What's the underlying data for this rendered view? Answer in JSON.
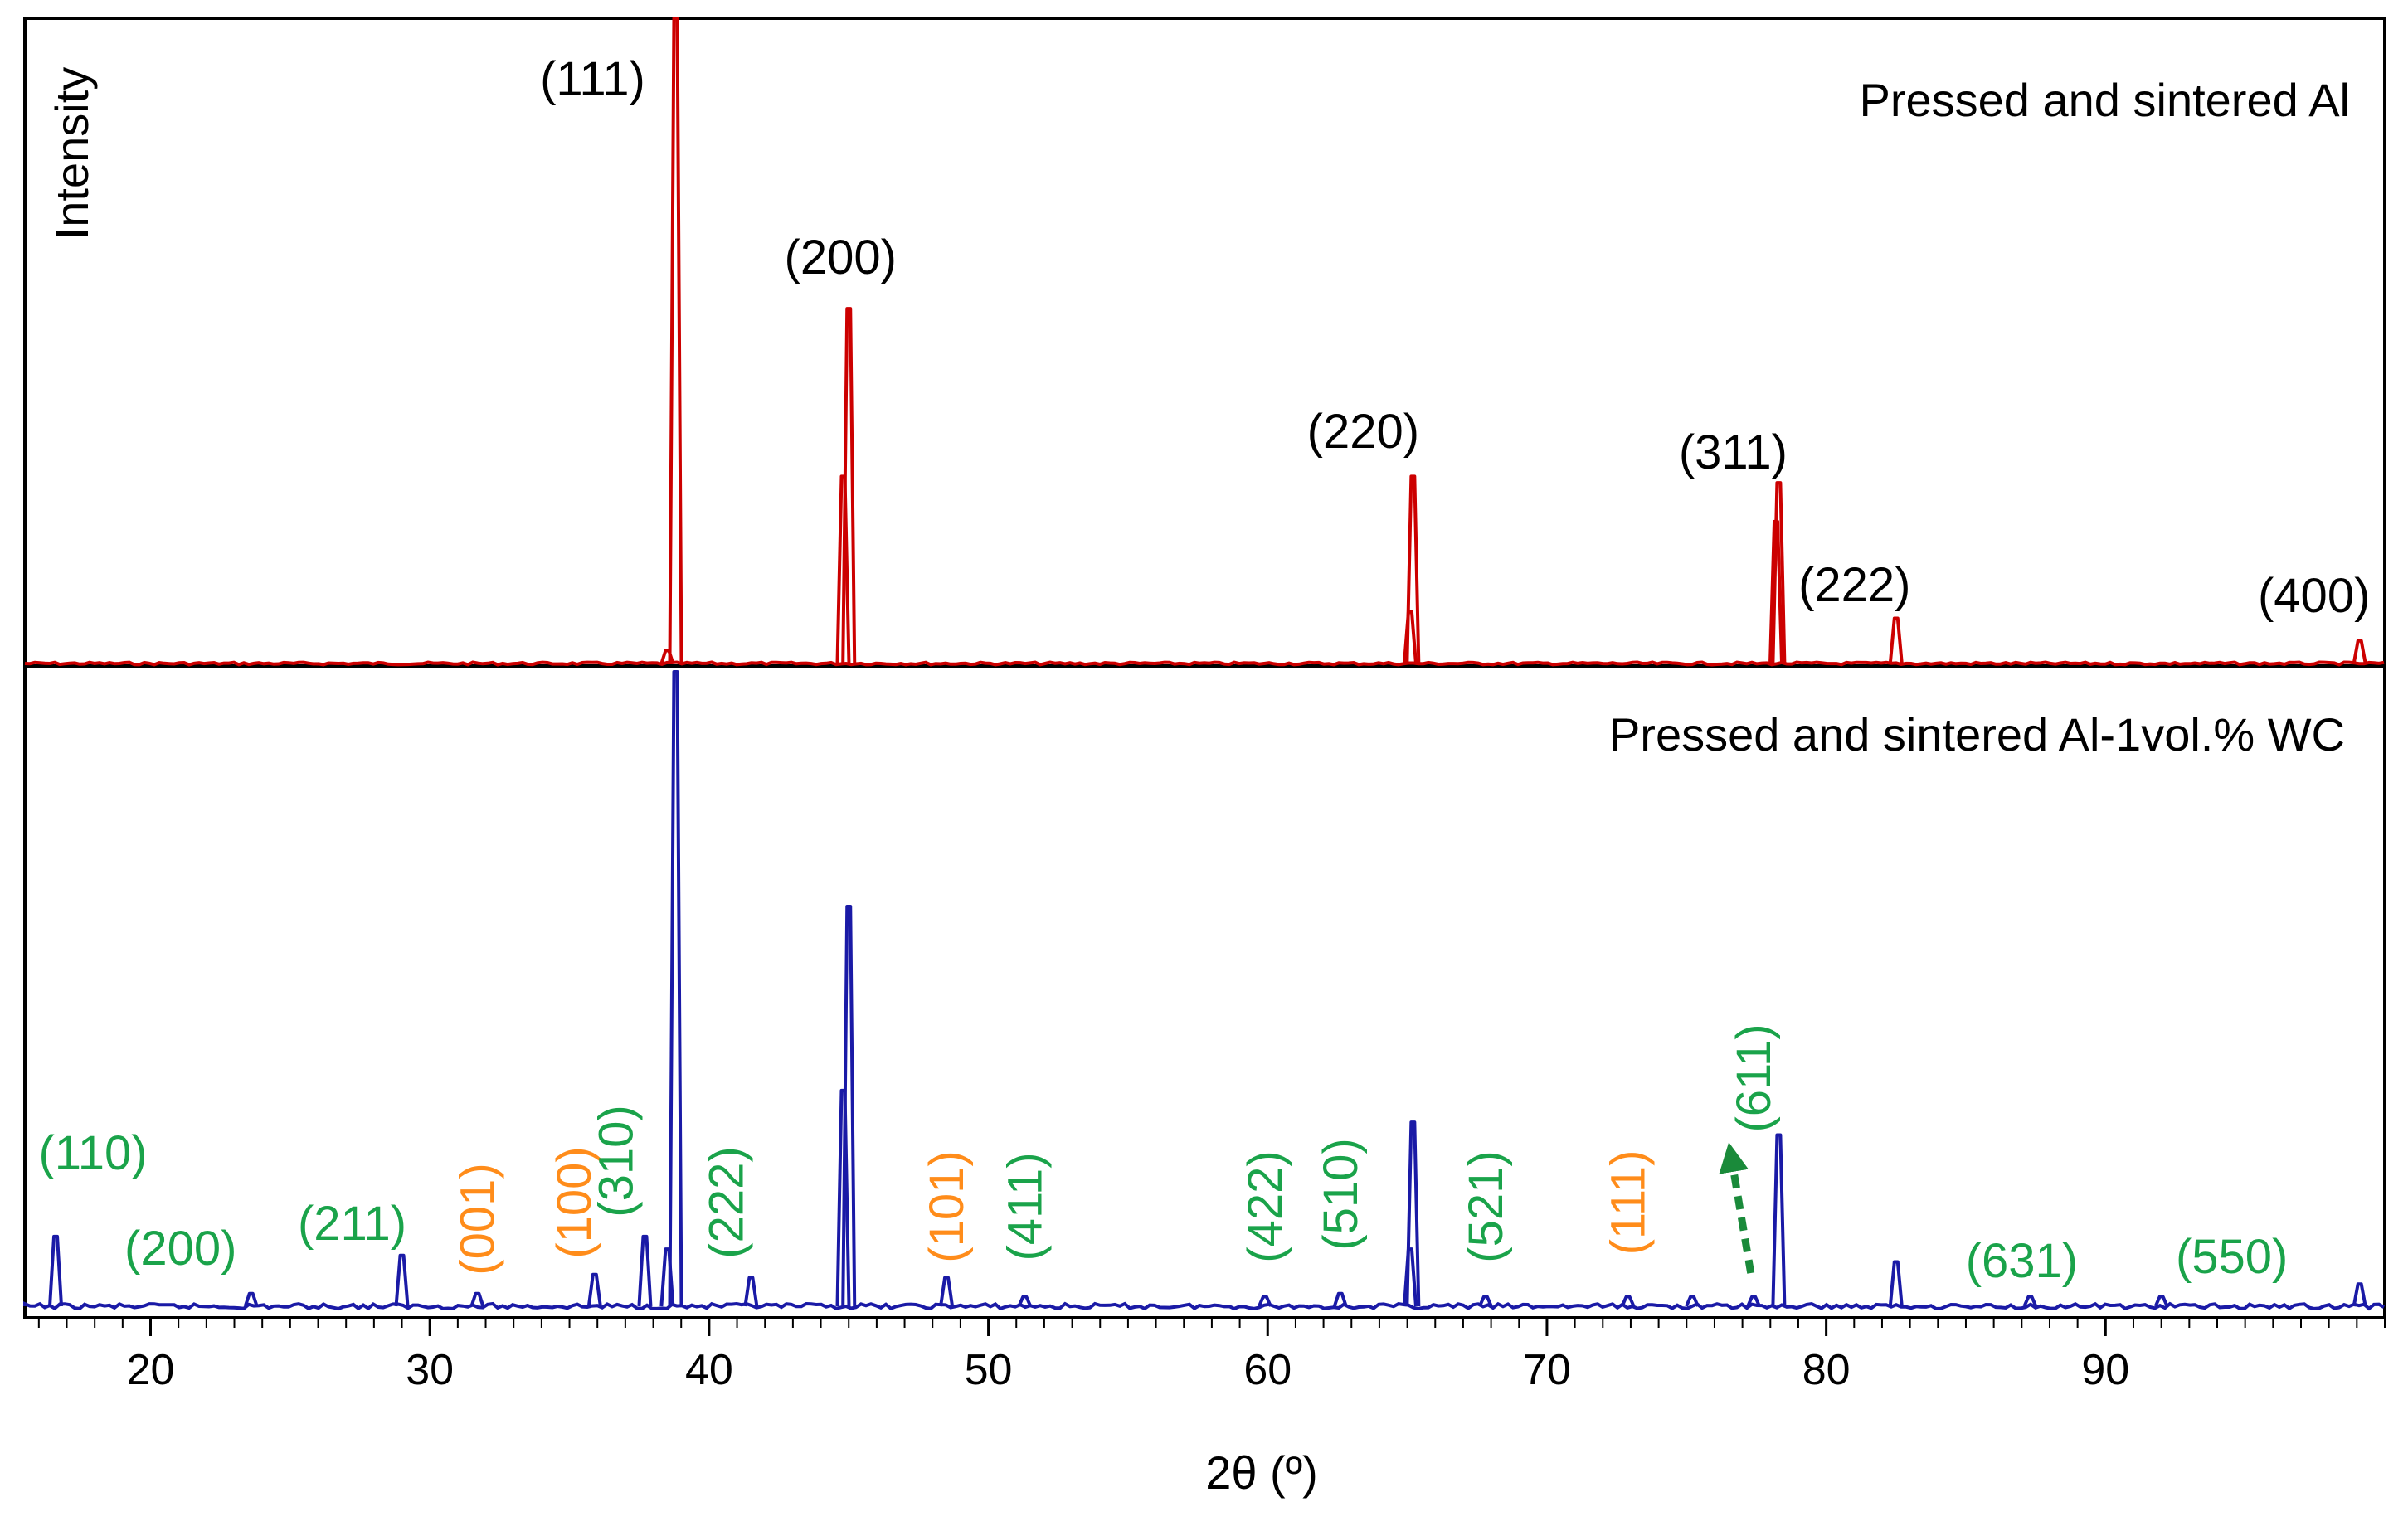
{
  "chart_data": {
    "type": "line",
    "title": "",
    "xlabel": "2θ (º)",
    "ylabel": "Intensity",
    "xlim": [
      15.5,
      100
    ],
    "grid": false,
    "x_ticks": [
      20,
      30,
      40,
      50,
      60,
      70,
      80,
      90
    ],
    "x_minor_tick_step": 1,
    "panels": [
      {
        "name": "Pressed and sintered Al",
        "label": "Pressed and sintered Al",
        "color": "#cc0000",
        "ylim": [
          0,
          100
        ],
        "peaks": [
          {
            "x": 38.5,
            "y": 2
          },
          {
            "x": 38.8,
            "y": 100
          },
          {
            "x": 44.8,
            "y": 29
          },
          {
            "x": 45.0,
            "y": 55
          },
          {
            "x": 65.1,
            "y": 8
          },
          {
            "x": 65.2,
            "y": 29
          },
          {
            "x": 78.2,
            "y": 22
          },
          {
            "x": 78.3,
            "y": 28
          },
          {
            "x": 82.5,
            "y": 7
          },
          {
            "x": 99.1,
            "y": 3.5
          }
        ],
        "annotations": [
          {
            "text": "(111)",
            "x": 38.8,
            "color": "#000000",
            "orientation": "horizontal"
          },
          {
            "text": "(200)",
            "x": 45.0,
            "color": "#000000",
            "orientation": "horizontal"
          },
          {
            "text": "(220)",
            "x": 65.2,
            "color": "#000000",
            "orientation": "horizontal"
          },
          {
            "text": "(311)",
            "x": 78.3,
            "color": "#000000",
            "orientation": "horizontal"
          },
          {
            "text": "(222)",
            "x": 82.5,
            "color": "#000000",
            "orientation": "horizontal"
          },
          {
            "text": "(400)",
            "x": 99.1,
            "color": "#000000",
            "orientation": "horizontal"
          }
        ]
      },
      {
        "name": "Pressed and sintered Al-1vol.% WC",
        "label": "Pressed and sintered Al-1vol.% WC",
        "color": "#1a1aa6",
        "ylim": [
          0,
          100
        ],
        "peaks": [
          {
            "x": 16.6,
            "y": 11
          },
          {
            "x": 23.6,
            "y": 2
          },
          {
            "x": 29.0,
            "y": 8
          },
          {
            "x": 31.7,
            "y": 2
          },
          {
            "x": 35.9,
            "y": 5
          },
          {
            "x": 37.7,
            "y": 11
          },
          {
            "x": 38.5,
            "y": 9
          },
          {
            "x": 38.8,
            "y": 100
          },
          {
            "x": 41.5,
            "y": 4.5
          },
          {
            "x": 44.8,
            "y": 34
          },
          {
            "x": 45.0,
            "y": 63
          },
          {
            "x": 48.5,
            "y": 4.5
          },
          {
            "x": 51.3,
            "y": 1.5
          },
          {
            "x": 59.9,
            "y": 1.5
          },
          {
            "x": 62.6,
            "y": 2
          },
          {
            "x": 65.1,
            "y": 9
          },
          {
            "x": 65.2,
            "y": 29
          },
          {
            "x": 67.8,
            "y": 1.5
          },
          {
            "x": 72.9,
            "y": 1.5
          },
          {
            "x": 75.2,
            "y": 1.5
          },
          {
            "x": 77.4,
            "y": 1.5
          },
          {
            "x": 78.3,
            "y": 27
          },
          {
            "x": 82.5,
            "y": 7
          },
          {
            "x": 87.3,
            "y": 1.5
          },
          {
            "x": 92.0,
            "y": 1.5
          },
          {
            "x": 99.1,
            "y": 3.5
          }
        ],
        "annotations": [
          {
            "text": "(110)",
            "x": 16.6,
            "color": "#1aa34a",
            "orientation": "horizontal"
          },
          {
            "text": "(200)",
            "x": 23.6,
            "color": "#1aa34a",
            "orientation": "horizontal"
          },
          {
            "text": "(211)",
            "x": 29.0,
            "color": "#1aa34a",
            "orientation": "horizontal"
          },
          {
            "text": "(001)",
            "x": 31.7,
            "color": "#ff8c1a",
            "orientation": "vertical"
          },
          {
            "text": "(100)",
            "x": 35.9,
            "color": "#ff8c1a",
            "orientation": "vertical"
          },
          {
            "text": "(310)",
            "x": 37.7,
            "color": "#1aa34a",
            "orientation": "vertical"
          },
          {
            "text": "(222)",
            "x": 41.5,
            "color": "#1aa34a",
            "orientation": "vertical"
          },
          {
            "text": "(101)",
            "x": 48.5,
            "color": "#ff8c1a",
            "orientation": "vertical"
          },
          {
            "text": "(411)",
            "x": 51.3,
            "color": "#1aa34a",
            "orientation": "vertical"
          },
          {
            "text": "(422)",
            "x": 59.9,
            "color": "#1aa34a",
            "orientation": "vertical"
          },
          {
            "text": "(510)",
            "x": 62.6,
            "color": "#1aa34a",
            "orientation": "vertical"
          },
          {
            "text": "(521)",
            "x": 67.8,
            "color": "#1aa34a",
            "orientation": "vertical"
          },
          {
            "text": "(111)",
            "x": 72.9,
            "color": "#ff8c1a",
            "orientation": "vertical"
          },
          {
            "text": "(611)",
            "x": 77.4,
            "color": "#1aa34a",
            "orientation": "vertical"
          },
          {
            "text": "(631)",
            "x": 87.3,
            "color": "#1aa34a",
            "orientation": "horizontal"
          },
          {
            "text": "(550)",
            "x": 92.0,
            "color": "#1aa34a",
            "orientation": "horizontal"
          }
        ],
        "arrow": {
          "from_x": 77.3,
          "to_x": 76.6,
          "color": "#1a8a3a",
          "points_to": "(611)"
        }
      }
    ]
  }
}
